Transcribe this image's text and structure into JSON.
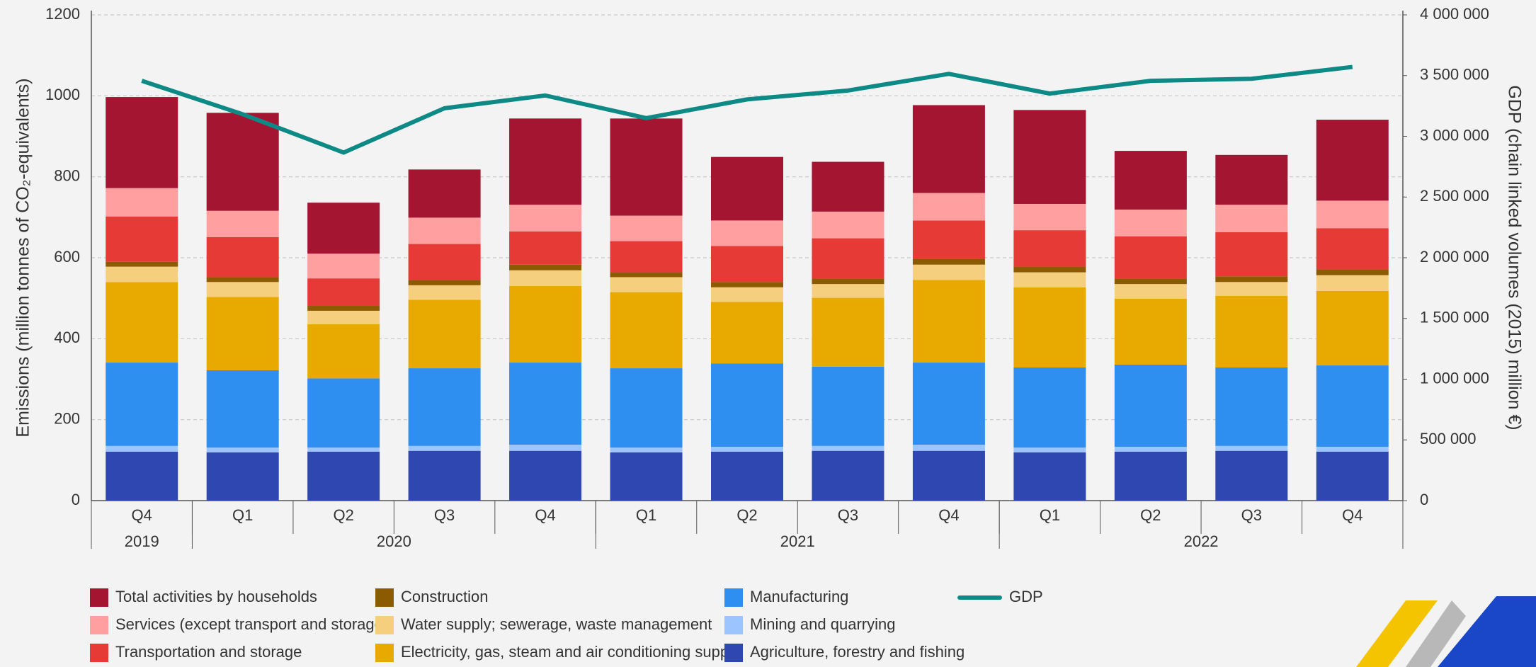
{
  "chart_data": {
    "type": "stacked-bar-line",
    "categories": [
      "Q4",
      "Q1",
      "Q2",
      "Q3",
      "Q4",
      "Q1",
      "Q2",
      "Q3",
      "Q4",
      "Q1",
      "Q2",
      "Q3",
      "Q4"
    ],
    "x_groups": [
      {
        "label": "2019",
        "count": 1
      },
      {
        "label": "2020",
        "count": 4
      },
      {
        "label": "2021",
        "count": 4
      },
      {
        "label": "2022",
        "count": 4
      }
    ],
    "ylabel": "Emissions (million tonnes of CO₂-equivalents)",
    "y2label": "GDP (chain linked volumes (2015) million €)",
    "ylim": [
      0,
      1200
    ],
    "yticks": [
      0,
      200,
      400,
      600,
      800,
      1000,
      1200
    ],
    "y2lim": [
      0,
      4000000
    ],
    "y2ticks": [
      0,
      {
        "value": 500000,
        "label": "500 000"
      },
      {
        "value": 1000000,
        "label": "1 000 000"
      },
      {
        "value": 1500000,
        "label": "1 500 000"
      },
      {
        "value": 2000000,
        "label": "2 000 000"
      },
      {
        "value": 2500000,
        "label": "2 500 000"
      },
      {
        "value": 3000000,
        "label": "3 000 000"
      },
      {
        "value": 3500000,
        "label": "3 500 000"
      },
      {
        "value": 4000000,
        "label": "4 000 000"
      }
    ],
    "grid": true,
    "series": [
      {
        "name": "Agriculture, forestry and fishing",
        "color": "#2f47b0",
        "values": [
          121,
          119,
          121,
          123,
          123,
          119,
          121,
          123,
          123,
          119,
          121,
          123,
          121
        ]
      },
      {
        "name": "Mining and quarrying",
        "color": "#9cc4ff",
        "values": [
          14,
          12,
          10,
          12,
          15,
          12,
          12,
          12,
          15,
          12,
          12,
          12,
          12
        ]
      },
      {
        "name": "Manufacturing",
        "color": "#2e8ff0",
        "values": [
          206,
          191,
          171,
          192,
          203,
          196,
          206,
          196,
          203,
          198,
          203,
          194,
          201
        ]
      },
      {
        "name": "Electricity, gas, steam and air conditioning supply",
        "color": "#e8a900",
        "values": [
          199,
          181,
          134,
          169,
          189,
          188,
          152,
          170,
          204,
          198,
          163,
          177,
          184
        ]
      },
      {
        "name": "Water supply; sewerage, waste management",
        "color": "#f5cf7d",
        "values": [
          38,
          37,
          33,
          36,
          39,
          37,
          36,
          34,
          38,
          37,
          36,
          34,
          39
        ]
      },
      {
        "name": "Construction",
        "color": "#8c5a00",
        "values": [
          12,
          12,
          12,
          12,
          14,
          12,
          13,
          14,
          15,
          14,
          14,
          14,
          14
        ]
      },
      {
        "name": "Transportation and storage",
        "color": "#e53a35",
        "values": [
          112,
          99,
          68,
          90,
          82,
          77,
          89,
          99,
          94,
          90,
          104,
          109,
          102
        ]
      },
      {
        "name": "Services (except transport and storage)",
        "color": "#ff9f9f",
        "values": [
          70,
          65,
          61,
          65,
          66,
          63,
          63,
          66,
          68,
          65,
          66,
          68,
          68
        ]
      },
      {
        "name": "Total activities by households",
        "color": "#a31530",
        "values": [
          225,
          242,
          126,
          119,
          213,
          240,
          157,
          123,
          217,
          232,
          145,
          123,
          200
        ]
      },
      {
        "name": "GDP",
        "color": "#0e8a86",
        "axis": "y2",
        "line": true,
        "values": [
          3457000,
          3182000,
          2866000,
          3231000,
          3336000,
          3150000,
          3304000,
          3377000,
          3514000,
          3352000,
          3457000,
          3474000,
          3571000
        ]
      }
    ]
  }
}
